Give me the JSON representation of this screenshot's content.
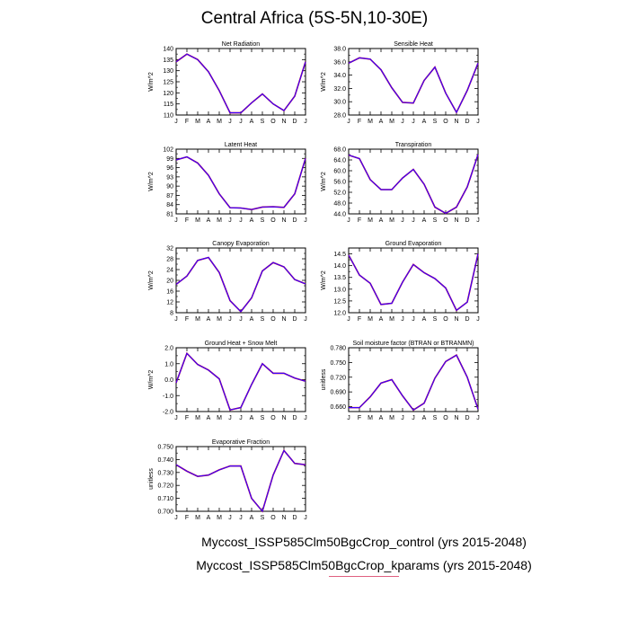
{
  "title": "Central Africa (5S-5N,10-30E)",
  "legend": [
    {
      "label": "Myccost_ISSP585Clm50BgcCrop_control (yrs 2015-2048)",
      "color": "#e00000"
    },
    {
      "label": "Myccost_ISSP585Clm50BgcCrop_kparams (yrs 2015-2048)",
      "color": "#3a00ff"
    }
  ],
  "chart_data": [
    {
      "type": "line",
      "title": "Net Radiation",
      "ylabel": "W/m^2",
      "x": [
        "J",
        "F",
        "M",
        "A",
        "M",
        "J",
        "J",
        "A",
        "S",
        "O",
        "N",
        "D",
        "J"
      ],
      "ylim": [
        110,
        140
      ],
      "yticks": [
        110,
        115,
        120,
        125,
        130,
        135,
        140
      ],
      "ytick_labels": [
        "110",
        "115",
        "120",
        "125",
        "130",
        "135",
        "140"
      ],
      "values": [
        134,
        137.5,
        135,
        129.5,
        121,
        111,
        111,
        115.5,
        119.5,
        115,
        112,
        118.5,
        134
      ]
    },
    {
      "type": "line",
      "title": "Sensible Heat",
      "ylabel": "W/m^2",
      "x": [
        "J",
        "F",
        "M",
        "A",
        "M",
        "J",
        "J",
        "A",
        "S",
        "O",
        "N",
        "D",
        "J"
      ],
      "ylim": [
        28,
        38
      ],
      "yticks": [
        28,
        30,
        32,
        34,
        36,
        38
      ],
      "ytick_labels": [
        "28.0",
        "30.0",
        "32.0",
        "34.0",
        "36.0",
        "38.0"
      ],
      "values": [
        35.8,
        36.6,
        36.4,
        34.8,
        32.1,
        29.9,
        29.8,
        33.2,
        35.2,
        31.3,
        28.4,
        31.7,
        35.8
      ]
    },
    {
      "type": "line",
      "title": "Latent Heat",
      "ylabel": "W/m^2",
      "x": [
        "J",
        "F",
        "M",
        "A",
        "M",
        "J",
        "J",
        "A",
        "S",
        "O",
        "N",
        "D",
        "J"
      ],
      "ylim": [
        81,
        102
      ],
      "yticks": [
        81,
        84,
        87,
        90,
        93,
        96,
        99,
        102
      ],
      "ytick_labels": [
        "81",
        "84",
        "87",
        "90",
        "93",
        "96",
        "99",
        "102"
      ],
      "values": [
        98.5,
        99.5,
        97.5,
        93.5,
        87.5,
        83,
        82.9,
        82.4,
        83.2,
        83.3,
        83.1,
        87.5,
        99
      ]
    },
    {
      "type": "line",
      "title": "Transpiration",
      "ylabel": "W/m^2",
      "x": [
        "J",
        "F",
        "M",
        "A",
        "M",
        "J",
        "J",
        "A",
        "S",
        "O",
        "N",
        "D",
        "J"
      ],
      "ylim": [
        44,
        68
      ],
      "yticks": [
        44,
        48,
        52,
        56,
        60,
        64,
        68
      ],
      "ytick_labels": [
        "44.0",
        "48.0",
        "52.0",
        "56.0",
        "60.0",
        "64.0",
        "68.0"
      ],
      "values": [
        65.8,
        64.5,
        56.7,
        53,
        53,
        57.3,
        60.5,
        55,
        46.5,
        44.2,
        46.5,
        54,
        66
      ]
    },
    {
      "type": "line",
      "title": "Canopy Evaporation",
      "ylabel": "W/m^2",
      "x": [
        "J",
        "F",
        "M",
        "A",
        "M",
        "J",
        "J",
        "A",
        "S",
        "O",
        "N",
        "D",
        "J"
      ],
      "ylim": [
        8,
        32
      ],
      "yticks": [
        8,
        12,
        16,
        20,
        24,
        28,
        32
      ],
      "ytick_labels": [
        "8",
        "12",
        "16",
        "20",
        "24",
        "28",
        "32"
      ],
      "values": [
        18.5,
        21.6,
        27.4,
        28.5,
        22.9,
        12.5,
        8.4,
        13.5,
        23.5,
        26.6,
        25,
        20.3,
        18.7
      ]
    },
    {
      "type": "line",
      "title": "Ground Evaporation",
      "ylabel": "W/m^2",
      "x": [
        "J",
        "F",
        "M",
        "A",
        "M",
        "J",
        "J",
        "A",
        "S",
        "O",
        "N",
        "D",
        "J"
      ],
      "ylim": [
        12,
        14.75
      ],
      "yticks": [
        12,
        12.5,
        13,
        13.5,
        14,
        14.5
      ],
      "ytick_labels": [
        "12.0",
        "12.5",
        "13.0",
        "13.5",
        "14.0",
        "14.5"
      ],
      "values": [
        14.45,
        13.6,
        13.25,
        12.35,
        12.4,
        13.3,
        14.05,
        13.7,
        13.45,
        13.05,
        12.1,
        12.45,
        14.5
      ]
    },
    {
      "type": "line",
      "title": "Ground Heat + Snow Melt",
      "ylabel": "W/m^2",
      "x": [
        "J",
        "F",
        "M",
        "A",
        "M",
        "J",
        "J",
        "A",
        "S",
        "O",
        "N",
        "D",
        "J"
      ],
      "ylim": [
        -2,
        2
      ],
      "yticks": [
        -2,
        -1,
        0,
        1,
        2
      ],
      "ytick_labels": [
        "-2.0",
        "-1.0",
        "0.0",
        "1.0",
        "2.0"
      ],
      "values": [
        -0.2,
        1.65,
        0.95,
        0.6,
        0.05,
        -1.9,
        -1.75,
        -0.3,
        1.0,
        0.4,
        0.4,
        0.1,
        -0.1
      ]
    },
    {
      "type": "line",
      "title": "Soil moisture factor (BTRAN or BTRANMN)",
      "ylabel": "unitless",
      "x": [
        "J",
        "F",
        "M",
        "A",
        "M",
        "J",
        "J",
        "A",
        "S",
        "O",
        "N",
        "D",
        "J"
      ],
      "ylim": [
        0.65,
        0.78
      ],
      "yticks": [
        0.66,
        0.69,
        0.72,
        0.75,
        0.78
      ],
      "ytick_labels": [
        "0.660",
        "0.690",
        "0.720",
        "0.750",
        "0.780"
      ],
      "values": [
        0.658,
        0.658,
        0.68,
        0.708,
        0.715,
        0.682,
        0.653,
        0.667,
        0.718,
        0.752,
        0.765,
        0.72,
        0.655
      ]
    },
    {
      "type": "line",
      "title": "Evaporative Fraction",
      "ylabel": "unitless",
      "x": [
        "J",
        "F",
        "M",
        "A",
        "M",
        "J",
        "J",
        "A",
        "S",
        "O",
        "N",
        "D",
        "J"
      ],
      "ylim": [
        0.7,
        0.75
      ],
      "yticks": [
        0.7,
        0.71,
        0.72,
        0.73,
        0.74,
        0.75
      ],
      "ytick_labels": [
        "0.700",
        "0.710",
        "0.720",
        "0.730",
        "0.740",
        "0.750"
      ],
      "values": [
        0.736,
        0.731,
        0.727,
        0.728,
        0.732,
        0.735,
        0.735,
        0.71,
        0.7,
        0.728,
        0.747,
        0.737,
        0.736
      ]
    }
  ]
}
